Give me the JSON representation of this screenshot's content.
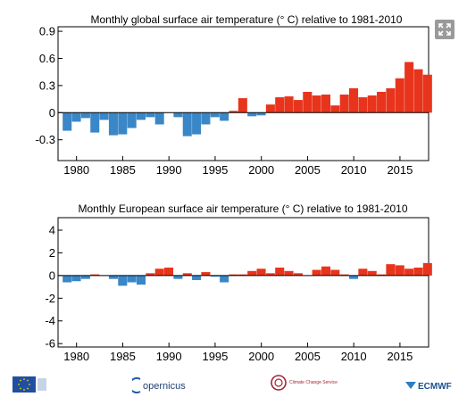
{
  "ui": {
    "expand_icon": "expand-arrows-icon",
    "expand_color": "#9a9a9a"
  },
  "colors": {
    "positive": "#e8341c",
    "negative": "#3a87c8",
    "axis": "#000000"
  },
  "footer": {
    "logos": [
      {
        "name": "eu-flag-logo",
        "text": ""
      },
      {
        "name": "copernicus-logo",
        "text": "opernicus"
      },
      {
        "name": "climate-change-service-logo",
        "text": "Climate Change Service"
      },
      {
        "name": "ecmwf-logo",
        "text": "ECMWF"
      }
    ]
  },
  "chart_data": [
    {
      "type": "bar",
      "title": "Monthly  global surface air temperature (° C) relative to 1981-2010",
      "xlabel": "",
      "ylabel": "",
      "xlim": [
        1978.5,
        2018.6
      ],
      "ylim": [
        -0.53,
        0.95
      ],
      "yticks": [
        {
          "v": 0.9,
          "label": "0.9"
        },
        {
          "v": 0.6,
          "label": "0.6"
        },
        {
          "v": 0.3,
          "label": "0.3"
        },
        {
          "v": 0,
          "label": "0"
        },
        {
          "v": -0.3,
          "label": "-0.3"
        }
      ],
      "xticks": [
        1980,
        1985,
        1990,
        1995,
        2000,
        2005,
        2010,
        2015
      ],
      "grid": false,
      "legend": "none",
      "start_year": 1979,
      "annual_values": [
        {
          "year": 1979,
          "value": -0.2
        },
        {
          "year": 1980,
          "value": -0.1
        },
        {
          "year": 1981,
          "value": -0.06
        },
        {
          "year": 1982,
          "value": -0.22
        },
        {
          "year": 1983,
          "value": -0.08
        },
        {
          "year": 1984,
          "value": -0.25
        },
        {
          "year": 1985,
          "value": -0.24
        },
        {
          "year": 1986,
          "value": -0.17
        },
        {
          "year": 1987,
          "value": -0.08
        },
        {
          "year": 1988,
          "value": -0.05
        },
        {
          "year": 1989,
          "value": -0.13
        },
        {
          "year": 1990,
          "value": 0.0
        },
        {
          "year": 1991,
          "value": -0.05
        },
        {
          "year": 1992,
          "value": -0.26
        },
        {
          "year": 1993,
          "value": -0.24
        },
        {
          "year": 1994,
          "value": -0.13
        },
        {
          "year": 1995,
          "value": -0.05
        },
        {
          "year": 1996,
          "value": -0.09
        },
        {
          "year": 1997,
          "value": 0.02
        },
        {
          "year": 1998,
          "value": 0.16
        },
        {
          "year": 1999,
          "value": -0.04
        },
        {
          "year": 2000,
          "value": -0.03
        },
        {
          "year": 2001,
          "value": 0.09
        },
        {
          "year": 2002,
          "value": 0.17
        },
        {
          "year": 2003,
          "value": 0.18
        },
        {
          "year": 2004,
          "value": 0.14
        },
        {
          "year": 2005,
          "value": 0.23
        },
        {
          "year": 2006,
          "value": 0.19
        },
        {
          "year": 2007,
          "value": 0.2
        },
        {
          "year": 2008,
          "value": 0.08
        },
        {
          "year": 2009,
          "value": 0.2
        },
        {
          "year": 2010,
          "value": 0.27
        },
        {
          "year": 2011,
          "value": 0.17
        },
        {
          "year": 2012,
          "value": 0.19
        },
        {
          "year": 2013,
          "value": 0.23
        },
        {
          "year": 2014,
          "value": 0.27
        },
        {
          "year": 2015,
          "value": 0.38
        },
        {
          "year": 2016,
          "value": 0.56
        },
        {
          "year": 2017,
          "value": 0.48
        },
        {
          "year": 2018,
          "value": 0.42
        }
      ]
    },
    {
      "type": "bar",
      "title": "Monthly  European surface air temperature (° C) relative to 1981-2010",
      "xlabel": "",
      "ylabel": "",
      "xlim": [
        1978.5,
        2018.6
      ],
      "ylim": [
        -6.3,
        5.1
      ],
      "yticks": [
        {
          "v": 4,
          "label": "4"
        },
        {
          "v": 2,
          "label": "2"
        },
        {
          "v": 0,
          "label": "0"
        },
        {
          "v": -2,
          "label": "-2"
        },
        {
          "v": -4,
          "label": "-4"
        },
        {
          "v": -6,
          "label": "-6"
        }
      ],
      "xticks": [
        1980,
        1985,
        1990,
        1995,
        2000,
        2005,
        2010,
        2015
      ],
      "grid": false,
      "legend": "none",
      "start_year": 1979,
      "annual_values": [
        {
          "year": 1979,
          "value": -0.6
        },
        {
          "year": 1980,
          "value": -0.5
        },
        {
          "year": 1981,
          "value": -0.3
        },
        {
          "year": 1982,
          "value": 0.1
        },
        {
          "year": 1983,
          "value": 0.0
        },
        {
          "year": 1984,
          "value": -0.3
        },
        {
          "year": 1985,
          "value": -0.9
        },
        {
          "year": 1986,
          "value": -0.6
        },
        {
          "year": 1987,
          "value": -0.8
        },
        {
          "year": 1988,
          "value": 0.2
        },
        {
          "year": 1989,
          "value": 0.6
        },
        {
          "year": 1990,
          "value": 0.7
        },
        {
          "year": 1991,
          "value": -0.3
        },
        {
          "year": 1992,
          "value": 0.2
        },
        {
          "year": 1993,
          "value": -0.4
        },
        {
          "year": 1994,
          "value": 0.3
        },
        {
          "year": 1995,
          "value": -0.1
        },
        {
          "year": 1996,
          "value": -0.6
        },
        {
          "year": 1997,
          "value": 0.1
        },
        {
          "year": 1998,
          "value": 0.1
        },
        {
          "year": 1999,
          "value": 0.4
        },
        {
          "year": 2000,
          "value": 0.6
        },
        {
          "year": 2001,
          "value": 0.2
        },
        {
          "year": 2002,
          "value": 0.7
        },
        {
          "year": 2003,
          "value": 0.4
        },
        {
          "year": 2004,
          "value": 0.2
        },
        {
          "year": 2005,
          "value": 0.0
        },
        {
          "year": 2006,
          "value": 0.5
        },
        {
          "year": 2007,
          "value": 0.8
        },
        {
          "year": 2008,
          "value": 0.5
        },
        {
          "year": 2009,
          "value": 0.1
        },
        {
          "year": 2010,
          "value": -0.3
        },
        {
          "year": 2011,
          "value": 0.6
        },
        {
          "year": 2012,
          "value": 0.4
        },
        {
          "year": 2013,
          "value": 0.1
        },
        {
          "year": 2014,
          "value": 1.0
        },
        {
          "year": 2015,
          "value": 0.9
        },
        {
          "year": 2016,
          "value": 0.6
        },
        {
          "year": 2017,
          "value": 0.7
        },
        {
          "year": 2018,
          "value": 1.1
        }
      ]
    }
  ]
}
